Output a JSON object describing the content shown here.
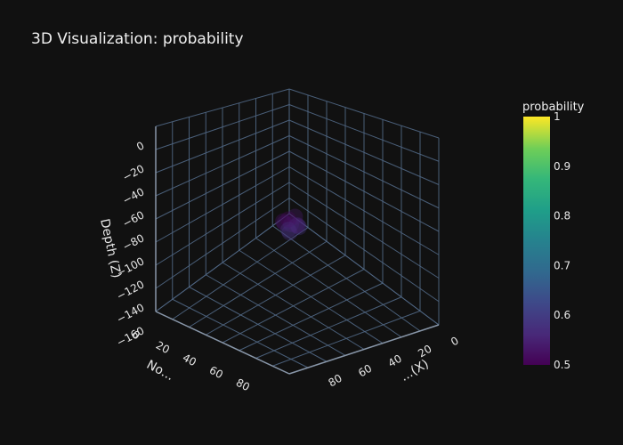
{
  "chart_data": {
    "type": "scatter3d",
    "title": "3D Visualization: probability",
    "axes": {
      "z": {
        "label": "Depth (Z)",
        "range": [
          -160,
          0
        ],
        "ticks": [
          0,
          -20,
          -40,
          -60,
          -80,
          -100,
          -120,
          -140,
          -160
        ]
      },
      "y": {
        "label": "No...",
        "range": [
          0,
          80
        ],
        "ticks": [
          0,
          20,
          40,
          60,
          80
        ]
      },
      "x": {
        "label": "...(X)",
        "range": [
          0,
          100
        ],
        "ticks": [
          0,
          20,
          40,
          60,
          80
        ]
      }
    },
    "colorbar": {
      "title": "probability",
      "colorscale": "Viridis",
      "range": [
        0.5,
        1
      ],
      "ticks": [
        "1",
        "0.9",
        "0.8",
        "0.7",
        "0.6",
        "0.5"
      ]
    },
    "points": [
      {
        "x": 50,
        "y": 50,
        "z": -80,
        "value": 0.55
      },
      {
        "x": 48,
        "y": 52,
        "z": -78,
        "value": 0.52
      },
      {
        "x": 52,
        "y": 48,
        "z": -82,
        "value": 0.58
      },
      {
        "x": 50,
        "y": 47,
        "z": -76,
        "value": 0.54
      },
      {
        "x": 53,
        "y": 51,
        "z": -79,
        "value": 0.56
      },
      {
        "x": 47,
        "y": 49,
        "z": -81,
        "value": 0.53
      },
      {
        "x": 51,
        "y": 53,
        "z": -84,
        "value": 0.57
      },
      {
        "x": 49,
        "y": 50,
        "z": -77,
        "value": 0.51
      },
      {
        "x": 50,
        "y": 52,
        "z": -83,
        "value": 0.59
      },
      {
        "x": 52,
        "y": 50,
        "z": -80,
        "value": 0.55
      }
    ],
    "colors": {
      "background": "#111111",
      "grid": "#506784",
      "text": "#e6e6e6"
    }
  }
}
